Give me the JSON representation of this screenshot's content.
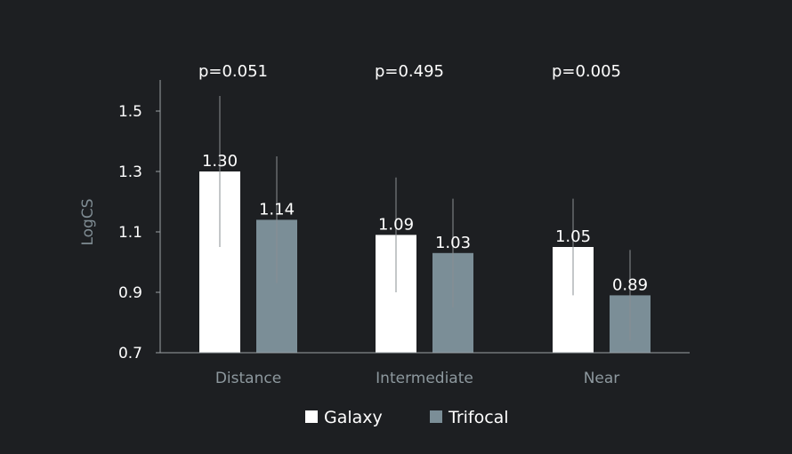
{
  "chart_data": {
    "type": "bar",
    "title": "",
    "xlabel": "",
    "ylabel": "LogCS",
    "ylim": [
      0.7,
      1.6
    ],
    "yticks": [
      "0.7",
      "0.9",
      "1.1",
      "1.3",
      "1.5"
    ],
    "categories": [
      "Distance",
      "Intermediate",
      "Near"
    ],
    "p_values": [
      "p=0.051",
      "p=0.495",
      "p=0.005"
    ],
    "series": [
      {
        "name": "Galaxy",
        "color": "#ffffff",
        "values": [
          1.3,
          1.09,
          1.05
        ],
        "labels": [
          "1.30",
          "1.09",
          "1.05"
        ],
        "error_low": [
          1.05,
          0.9,
          0.89
        ],
        "error_high": [
          1.55,
          1.28,
          1.21
        ]
      },
      {
        "name": "Trifocal",
        "color": "#7b8e97",
        "values": [
          1.14,
          1.03,
          0.89
        ],
        "labels": [
          "1.14",
          "1.03",
          "0.89"
        ],
        "error_low": [
          0.93,
          0.85,
          0.74
        ],
        "error_high": [
          1.35,
          1.21,
          1.04
        ]
      }
    ],
    "legend_position": "bottom-center",
    "grid": false
  },
  "colors": {
    "background": "#1d1f22",
    "axis": "#9aa0a4",
    "errorbar": "#8a8f93"
  }
}
